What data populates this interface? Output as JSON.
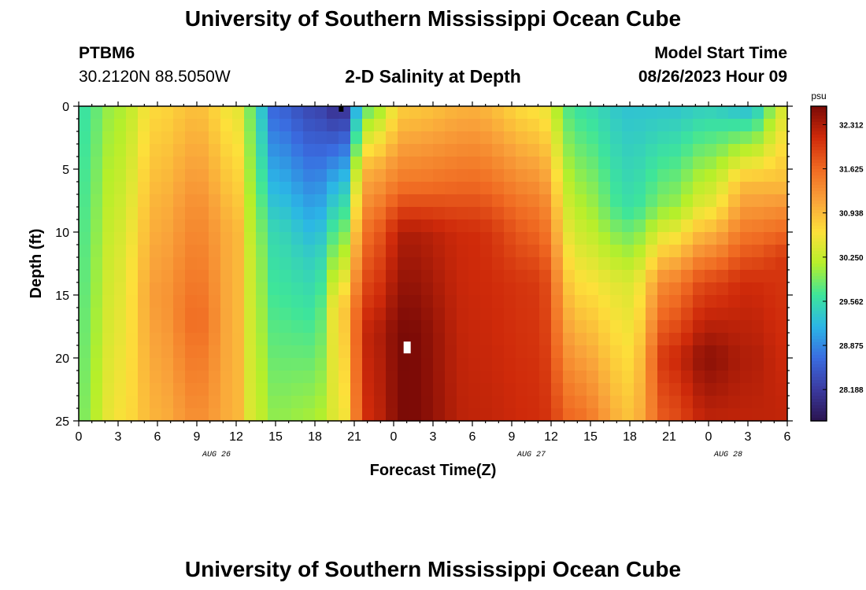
{
  "header": {
    "title": "University of Southern Mississippi Ocean Cube",
    "station_id": "PTBM6",
    "coordinates": "30.2120N  88.5050W",
    "subtitle": "2-D Salinity at Depth",
    "run_label": "Model Start Time",
    "run_value": "08/26/2023 Hour 09"
  },
  "footer": {
    "title": "University of Southern Mississippi Ocean Cube"
  },
  "chart_data": {
    "type": "heatmap",
    "title": "2-D Salinity at Depth",
    "xlabel": "Forecast Time(Z)",
    "ylabel": "Depth (ft)",
    "colorbar_label": "psu",
    "x_hours": [
      0,
      54
    ],
    "x_tick_labels": [
      "0",
      "3",
      "6",
      "9",
      "12",
      "15",
      "18",
      "21",
      "0",
      "3",
      "6",
      "9",
      "12",
      "15",
      "18",
      "21",
      "0",
      "3",
      "6"
    ],
    "date_labels": [
      {
        "label": "AUG 26",
        "at_tick": 3
      },
      {
        "label": "AUG 27",
        "at_tick": 11
      },
      {
        "label": "AUG 28",
        "at_tick": 16
      }
    ],
    "y_ticks": [
      0,
      5,
      10,
      15,
      20,
      25
    ],
    "ylim": [
      0,
      25
    ],
    "y_inverted": true,
    "colorbar_ticks": [
      32.312,
      31.625,
      30.938,
      30.25,
      29.562,
      28.875,
      28.188
    ],
    "colorbar_range": [
      27.7,
      32.6
    ],
    "colormap": [
      "#2a1450",
      "#3b3aa0",
      "#3a6ce0",
      "#2bb6e6",
      "#3ee59a",
      "#b6ef2a",
      "#fde03a",
      "#f9a23a",
      "#f06a22",
      "#cf2a0a",
      "#7a0a06"
    ],
    "keyframes": [
      {
        "t": 0,
        "profile": [
          {
            "d": 0,
            "v": 29.6
          },
          {
            "d": 25,
            "v": 29.9
          }
        ]
      },
      {
        "t": 3,
        "profile": [
          {
            "d": 0,
            "v": 30.1
          },
          {
            "d": 12,
            "v": 30.4
          },
          {
            "d": 25,
            "v": 30.6
          }
        ]
      },
      {
        "t": 6,
        "profile": [
          {
            "d": 0,
            "v": 30.7
          },
          {
            "d": 8,
            "v": 31.0
          },
          {
            "d": 15,
            "v": 31.2
          },
          {
            "d": 25,
            "v": 31.0
          }
        ]
      },
      {
        "t": 9,
        "profile": [
          {
            "d": 0,
            "v": 30.9
          },
          {
            "d": 8,
            "v": 31.3
          },
          {
            "d": 17,
            "v": 31.6
          },
          {
            "d": 25,
            "v": 31.3
          }
        ]
      },
      {
        "t": 12,
        "profile": [
          {
            "d": 0,
            "v": 30.5
          },
          {
            "d": 10,
            "v": 31.0
          },
          {
            "d": 25,
            "v": 31.0
          }
        ]
      },
      {
        "t": 13,
        "profile": [
          {
            "d": 0,
            "v": 29.9
          },
          {
            "d": 12,
            "v": 30.3
          },
          {
            "d": 25,
            "v": 30.4
          }
        ]
      },
      {
        "t": 15,
        "profile": [
          {
            "d": 0,
            "v": 28.6
          },
          {
            "d": 10,
            "v": 29.5
          },
          {
            "d": 25,
            "v": 30.0
          }
        ]
      },
      {
        "t": 18,
        "profile": [
          {
            "d": 0,
            "v": 28.3
          },
          {
            "d": 12,
            "v": 29.4
          },
          {
            "d": 25,
            "v": 30.1
          }
        ]
      },
      {
        "t": 20,
        "profile": [
          {
            "d": 0,
            "v": 28.0
          },
          {
            "d": 6,
            "v": 29.2
          },
          {
            "d": 16,
            "v": 30.8
          },
          {
            "d": 25,
            "v": 30.5
          }
        ]
      },
      {
        "t": 22,
        "profile": [
          {
            "d": 0,
            "v": 29.8
          },
          {
            "d": 5,
            "v": 31.0
          },
          {
            "d": 10,
            "v": 31.6
          },
          {
            "d": 18,
            "v": 32.2
          },
          {
            "d": 25,
            "v": 32.1
          }
        ]
      },
      {
        "t": 25,
        "profile": [
          {
            "d": 0,
            "v": 30.8
          },
          {
            "d": 6,
            "v": 31.5
          },
          {
            "d": 10,
            "v": 32.3
          },
          {
            "d": 18,
            "v": 32.6
          },
          {
            "d": 25,
            "v": 32.6
          }
        ]
      },
      {
        "t": 30,
        "profile": [
          {
            "d": 0,
            "v": 31.0
          },
          {
            "d": 6,
            "v": 31.6
          },
          {
            "d": 10,
            "v": 32.1
          },
          {
            "d": 25,
            "v": 32.2
          }
        ]
      },
      {
        "t": 35,
        "profile": [
          {
            "d": 0,
            "v": 30.6
          },
          {
            "d": 8,
            "v": 31.5
          },
          {
            "d": 14,
            "v": 32.0
          },
          {
            "d": 25,
            "v": 32.1
          }
        ]
      },
      {
        "t": 38,
        "profile": [
          {
            "d": 0,
            "v": 29.6
          },
          {
            "d": 10,
            "v": 30.3
          },
          {
            "d": 18,
            "v": 31.0
          },
          {
            "d": 25,
            "v": 31.6
          }
        ]
      },
      {
        "t": 42,
        "profile": [
          {
            "d": 0,
            "v": 29.3
          },
          {
            "d": 8,
            "v": 29.6
          },
          {
            "d": 14,
            "v": 30.4
          },
          {
            "d": 25,
            "v": 30.9
          }
        ]
      },
      {
        "t": 45,
        "profile": [
          {
            "d": 0,
            "v": 29.3
          },
          {
            "d": 8,
            "v": 30.0
          },
          {
            "d": 14,
            "v": 31.4
          },
          {
            "d": 20,
            "v": 32.1
          },
          {
            "d": 25,
            "v": 31.8
          }
        ]
      },
      {
        "t": 48,
        "profile": [
          {
            "d": 0,
            "v": 29.4
          },
          {
            "d": 8,
            "v": 30.5
          },
          {
            "d": 14,
            "v": 31.9
          },
          {
            "d": 20,
            "v": 32.5
          },
          {
            "d": 25,
            "v": 32.2
          }
        ]
      },
      {
        "t": 51,
        "profile": [
          {
            "d": 0,
            "v": 29.2
          },
          {
            "d": 6,
            "v": 30.9
          },
          {
            "d": 14,
            "v": 32.1
          },
          {
            "d": 20,
            "v": 32.3
          },
          {
            "d": 25,
            "v": 32.2
          }
        ]
      },
      {
        "t": 54,
        "profile": [
          {
            "d": 0,
            "v": 30.4
          },
          {
            "d": 6,
            "v": 30.9
          },
          {
            "d": 12,
            "v": 32.0
          },
          {
            "d": 25,
            "v": 32.2
          }
        ]
      }
    ]
  }
}
